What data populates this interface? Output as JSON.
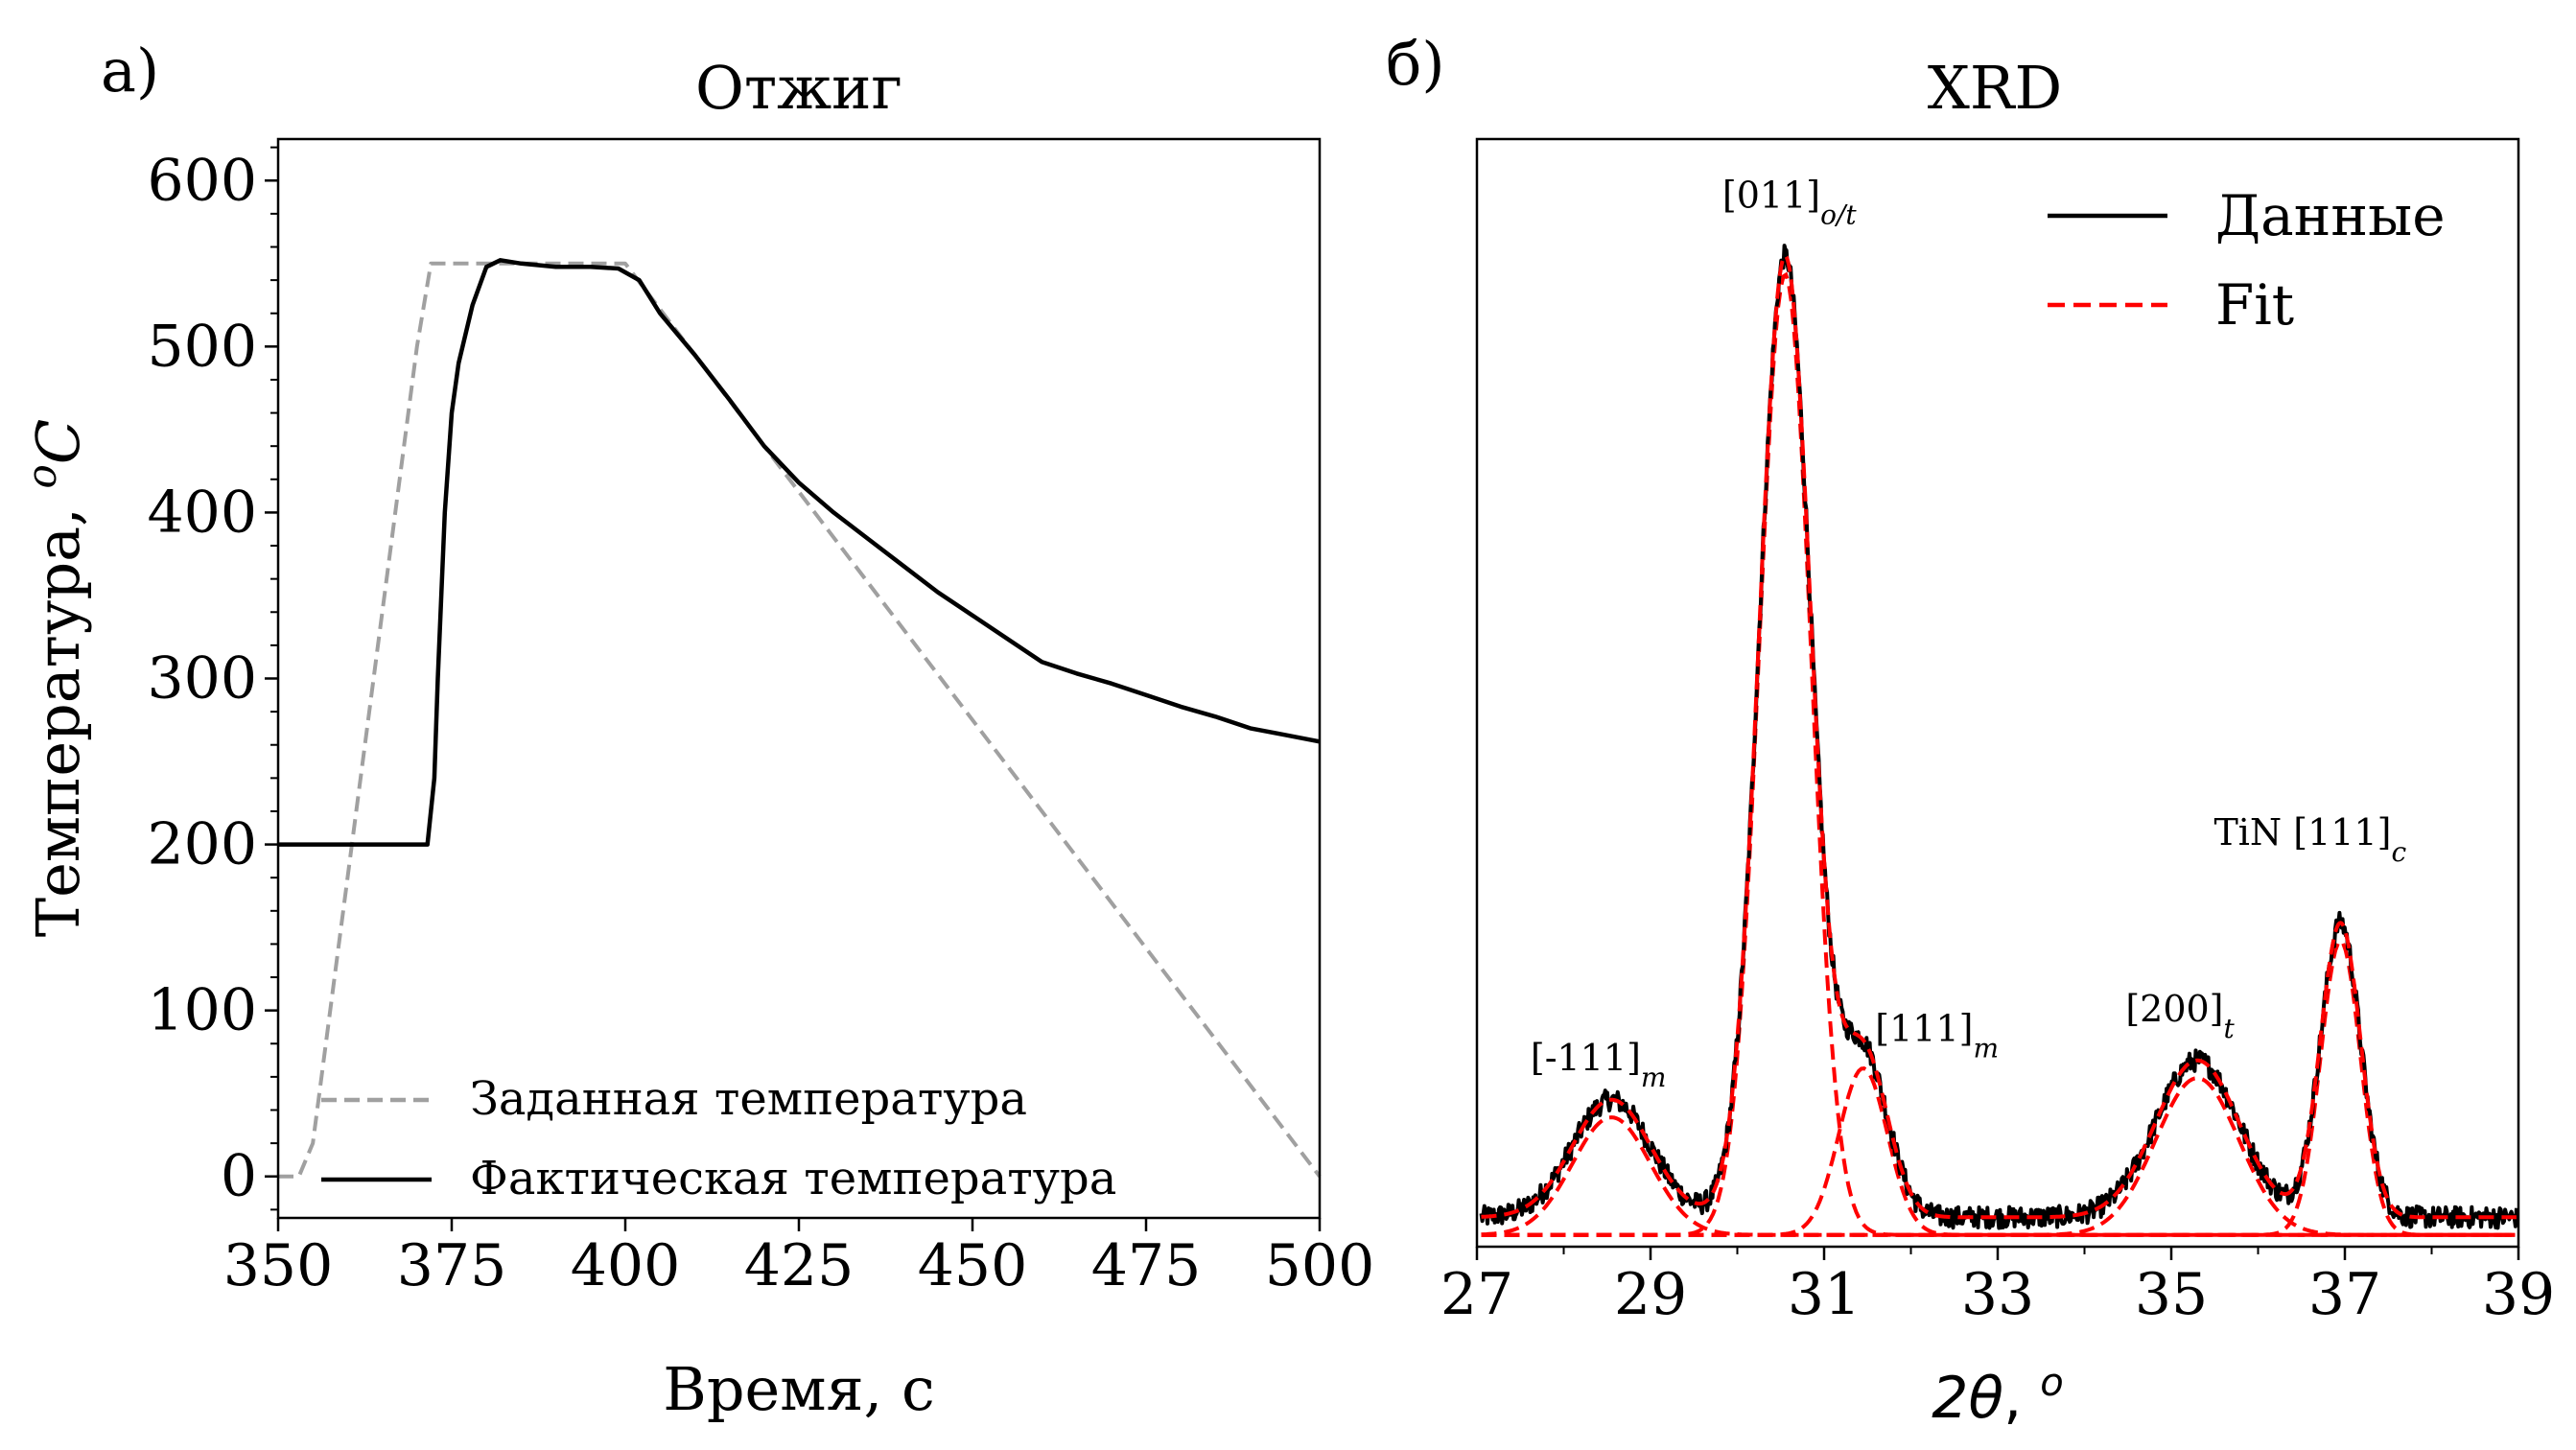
{
  "chart_data": [
    {
      "type": "line",
      "panel_label": "а)",
      "title": "Отжиг",
      "xlabel": "Время, с",
      "ylabel": "Температура, ",
      "ylabel_unit_sup": "o",
      "ylabel_unit": "C",
      "xlim": [
        350,
        500
      ],
      "ylim": [
        -25,
        625
      ],
      "xticks": [
        350,
        375,
        400,
        425,
        450,
        475,
        500
      ],
      "yticks": [
        0,
        100,
        200,
        300,
        400,
        500,
        600
      ],
      "legend_position": "lower-left",
      "series": [
        {
          "name": "Заданная температура",
          "color": "#a0a0a0",
          "dash": "dashed",
          "x": [
            350,
            353,
            355,
            360,
            365,
            370,
            372,
            400,
            500
          ],
          "y": [
            0,
            0,
            20,
            180,
            340,
            500,
            550,
            550,
            0
          ]
        },
        {
          "name": "Фактическая температура",
          "color": "#000000",
          "dash": "solid",
          "x": [
            350,
            371.5,
            372.5,
            373,
            374,
            375,
            376,
            378,
            380,
            382,
            385,
            390,
            395,
            399,
            402,
            405,
            410,
            415,
            420,
            425,
            430,
            435,
            440,
            445,
            450,
            455,
            460,
            465,
            470,
            475,
            480,
            485,
            490,
            495,
            500
          ],
          "y": [
            200,
            200,
            240,
            300,
            400,
            460,
            490,
            525,
            548,
            552,
            550,
            548,
            548,
            547,
            540,
            520,
            495,
            468,
            440,
            418,
            400,
            384,
            368,
            352,
            338,
            324,
            310,
            303,
            297,
            290,
            283,
            277,
            270,
            266,
            262
          ]
        }
      ]
    },
    {
      "type": "line",
      "panel_label": "б)",
      "title": "XRD",
      "xlabel_var": "2θ",
      "xlabel_rest": ", ",
      "xlabel_sup": "o",
      "xlim": [
        27,
        39
      ],
      "ylim": [
        0,
        1.13
      ],
      "xticks": [
        27,
        29,
        31,
        33,
        35,
        37,
        39
      ],
      "yticks": [],
      "legend_position": "upper-right",
      "baseline": 0.03,
      "peaks": [
        {
          "center": 28.55,
          "amplitude": 0.12,
          "sigma": 0.45
        },
        {
          "center": 30.55,
          "amplitude": 0.98,
          "sigma": 0.3
        },
        {
          "center": 31.45,
          "amplitude": 0.17,
          "sigma": 0.28
        },
        {
          "center": 35.3,
          "amplitude": 0.16,
          "sigma": 0.48
        },
        {
          "center": 36.95,
          "amplitude": 0.3,
          "sigma": 0.23
        }
      ],
      "series": [
        {
          "name": "Данные",
          "color": "#000000",
          "dash": "solid"
        },
        {
          "name": "Fit",
          "color": "#ff0000",
          "dash": "dashed"
        }
      ],
      "annotations": [
        {
          "text": "[011]",
          "sub": "o/t",
          "x": 30.6,
          "y": 1.06
        },
        {
          "text": "[-111]",
          "sub": "m",
          "x": 28.4,
          "y": 0.18
        },
        {
          "text": "[111]",
          "sub": "m",
          "x": 32.3,
          "y": 0.21
        },
        {
          "text": "[200]",
          "sub": "t",
          "x": 35.1,
          "y": 0.23
        },
        {
          "text": "TiN [111]",
          "sub": "c",
          "x": 36.6,
          "y": 0.41
        }
      ]
    }
  ]
}
